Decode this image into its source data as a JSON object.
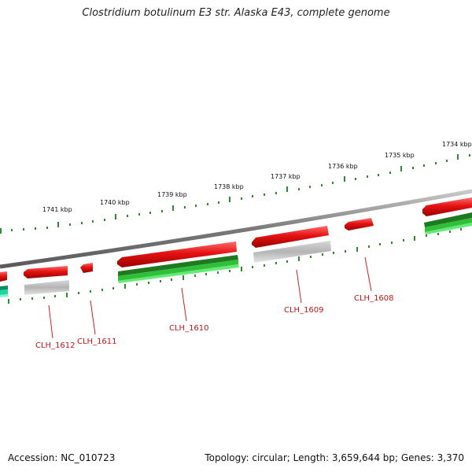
{
  "title": "Clostridium botulinum E3 str. Alaska E43, complete genome",
  "footer": {
    "accession": "Accession: NC_010723",
    "summary": "Topology: circular; Length: 3,659,644 bp; Genes: 3,370"
  },
  "colors": {
    "backbone": "#8a8a8a",
    "tick": "#2e8b2e",
    "gene_forward": "#e01010",
    "gene_reverse_track": "#aaaaaa",
    "cds_green": "#22a22a",
    "cds_teal": "#19d9a0",
    "label": "#c01818",
    "leader": "#d22020"
  },
  "scale_labels": [
    "1734 kbp",
    "1735 kbp",
    "1736 kbp",
    "1737 kbp",
    "1738 kbp",
    "1739 kbp",
    "1740 kbp",
    "1741 kbp"
  ],
  "genes": [
    {
      "label": "CLH_1608"
    },
    {
      "label": "CLH_1609"
    },
    {
      "label": "CLH_1610"
    },
    {
      "label": "CLH_1611"
    },
    {
      "label": "CLH_1612"
    }
  ]
}
